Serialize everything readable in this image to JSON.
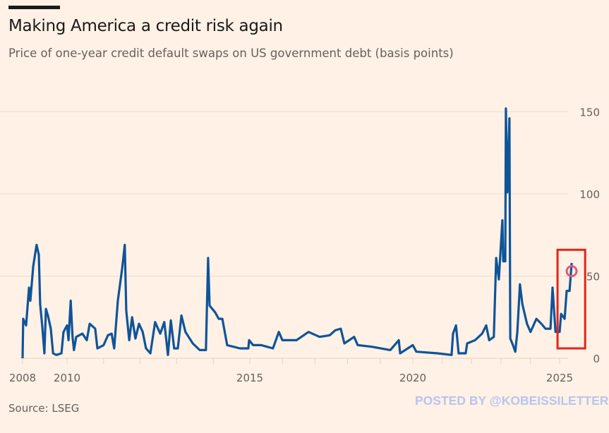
{
  "header": {
    "title": "Making America a credit risk again",
    "subtitle": "Price of one-year credit default swaps on US government debt (basis points)"
  },
  "footer": {
    "source": "Source: LSEG",
    "watermark": "POSTED BY @KOBEISSILETTER"
  },
  "chart_data": {
    "type": "line",
    "title": "Making America a credit risk again",
    "subtitle": "Price of one-year credit default swaps on US government debt (basis points)",
    "xlabel": "",
    "ylabel": "",
    "xlim": [
      2008,
      2025.9
    ],
    "ylim": [
      0,
      155
    ],
    "x_ticks": [
      2008,
      2010,
      2015,
      2020,
      2025
    ],
    "x_tick_labels": [
      "2008",
      "2010",
      "2015",
      "2020",
      "2025"
    ],
    "x_minor_ticks": [
      2011,
      2012,
      2013,
      2014,
      2016,
      2017,
      2018,
      2019,
      2021,
      2022,
      2023,
      2024
    ],
    "y_ticks": [
      0,
      50,
      100,
      150
    ],
    "y_tick_labels": [
      "0",
      "50",
      "100",
      "150"
    ],
    "y_axis_side": "right",
    "grid": true,
    "line_color": "#0f5499",
    "series": [
      {
        "points": [
          [
            2008.0,
            0
          ],
          [
            2008.03,
            24
          ],
          [
            2008.16,
            20
          ],
          [
            2008.29,
            43
          ],
          [
            2008.35,
            35
          ],
          [
            2008.48,
            56
          ],
          [
            2008.63,
            69
          ],
          [
            2008.73,
            63
          ],
          [
            2008.79,
            33
          ],
          [
            2008.89,
            19
          ],
          [
            2008.98,
            3
          ],
          [
            2009.05,
            30
          ],
          [
            2009.14,
            26
          ],
          [
            2009.27,
            18
          ],
          [
            2009.37,
            3
          ],
          [
            2009.52,
            2
          ],
          [
            2009.75,
            3
          ],
          [
            2009.84,
            16
          ],
          [
            2010.0,
            20
          ],
          [
            2010.04,
            11
          ],
          [
            2010.1,
            35
          ],
          [
            2010.15,
            13
          ],
          [
            2010.19,
            5
          ],
          [
            2010.25,
            13
          ],
          [
            2010.42,
            15
          ],
          [
            2010.54,
            11
          ],
          [
            2010.62,
            21
          ],
          [
            2010.77,
            18
          ],
          [
            2010.83,
            6
          ],
          [
            2011.0,
            8
          ],
          [
            2011.12,
            14
          ],
          [
            2011.22,
            15
          ],
          [
            2011.29,
            6
          ],
          [
            2011.39,
            35
          ],
          [
            2011.51,
            55
          ],
          [
            2011.58,
            69
          ],
          [
            2011.62,
            29
          ],
          [
            2011.7,
            11
          ],
          [
            2011.78,
            25
          ],
          [
            2011.87,
            12
          ],
          [
            2011.97,
            21
          ],
          [
            2012.07,
            16
          ],
          [
            2012.16,
            6
          ],
          [
            2012.28,
            3
          ],
          [
            2012.41,
            22
          ],
          [
            2012.55,
            15
          ],
          [
            2012.66,
            22
          ],
          [
            2012.76,
            2
          ],
          [
            2012.84,
            23
          ],
          [
            2012.93,
            6
          ],
          [
            2013.03,
            6
          ],
          [
            2013.13,
            26
          ],
          [
            2013.24,
            16
          ],
          [
            2013.44,
            9
          ],
          [
            2013.63,
            5
          ],
          [
            2013.8,
            5
          ],
          [
            2013.86,
            61
          ],
          [
            2013.9,
            32
          ],
          [
            2014.05,
            28
          ],
          [
            2014.15,
            24
          ],
          [
            2014.25,
            24
          ],
          [
            2014.38,
            8
          ],
          [
            2014.73,
            6
          ],
          [
            2014.96,
            6
          ],
          [
            2014.98,
            11
          ],
          [
            2015.1,
            8
          ],
          [
            2015.35,
            8
          ],
          [
            2015.71,
            6
          ],
          [
            2015.89,
            16
          ],
          [
            2016.0,
            11
          ],
          [
            2016.43,
            11
          ],
          [
            2016.8,
            16
          ],
          [
            2017.14,
            13
          ],
          [
            2017.45,
            14
          ],
          [
            2017.62,
            17
          ],
          [
            2017.79,
            18
          ],
          [
            2017.9,
            9
          ],
          [
            2018.2,
            13
          ],
          [
            2018.31,
            8
          ],
          [
            2018.74,
            7
          ],
          [
            2019.31,
            5
          ],
          [
            2019.57,
            11
          ],
          [
            2019.61,
            3
          ],
          [
            2020.0,
            8
          ],
          [
            2020.12,
            4
          ],
          [
            2020.84,
            3
          ],
          [
            2021.32,
            2
          ],
          [
            2021.37,
            15
          ],
          [
            2021.47,
            20
          ],
          [
            2021.56,
            3
          ],
          [
            2021.8,
            3
          ],
          [
            2021.85,
            9
          ],
          [
            2022.12,
            11
          ],
          [
            2022.36,
            15
          ],
          [
            2022.5,
            20
          ],
          [
            2022.6,
            11
          ],
          [
            2022.76,
            13
          ],
          [
            2022.84,
            61
          ],
          [
            2022.93,
            48
          ],
          [
            2023.05,
            84
          ],
          [
            2023.08,
            59
          ],
          [
            2023.15,
            59
          ],
          [
            2023.17,
            152
          ],
          [
            2023.22,
            101
          ],
          [
            2023.29,
            146
          ],
          [
            2023.32,
            12
          ],
          [
            2023.41,
            8
          ],
          [
            2023.49,
            4
          ],
          [
            2023.56,
            16
          ],
          [
            2023.65,
            45
          ],
          [
            2023.73,
            33
          ],
          [
            2023.89,
            21
          ],
          [
            2024.01,
            16
          ],
          [
            2024.21,
            24
          ],
          [
            2024.38,
            21
          ],
          [
            2024.52,
            18
          ],
          [
            2024.69,
            18
          ],
          [
            2024.76,
            43
          ],
          [
            2024.86,
            16
          ],
          [
            2025.0,
            16
          ],
          [
            2025.05,
            27
          ],
          [
            2025.17,
            24
          ],
          [
            2025.24,
            41
          ],
          [
            2025.34,
            41
          ],
          [
            2025.41,
            58
          ]
        ]
      }
    ],
    "annotations": [
      {
        "type": "highlight-box",
        "color": "#e2231a",
        "x_range": [
          2024.93,
          2025.87
        ],
        "y_range": [
          6,
          66
        ]
      },
      {
        "type": "circle-marker",
        "color": "#e05a7a",
        "x": 2025.41,
        "y": 53
      }
    ]
  }
}
